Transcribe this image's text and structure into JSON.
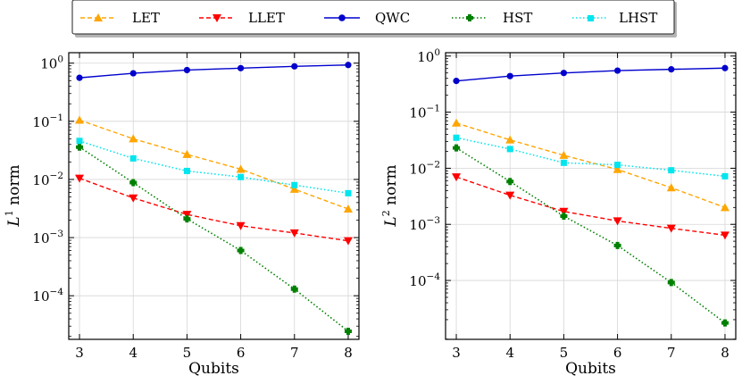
{
  "chart_data": [
    {
      "type": "line",
      "id": "l1",
      "xlabel": "Qubits",
      "ylabel_main": "L",
      "ylabel_sup": "1",
      "ylabel_rest": " norm",
      "yscale": "log",
      "xlim": [
        2.8,
        8.2
      ],
      "ylim_log10": [
        -4.75,
        0.18
      ],
      "x_ticks": [
        3,
        4,
        5,
        6,
        7,
        8
      ],
      "y_tick_exponents": [
        0,
        -1,
        -2,
        -3,
        -4
      ],
      "y_tick_labels": [
        "10",
        "10",
        "10",
        "10",
        "10"
      ],
      "y_tick_sups": [
        "0",
        "−1",
        "−2",
        "−3",
        "−4"
      ],
      "x": [
        3,
        4,
        5,
        6,
        7,
        8
      ],
      "series": [
        {
          "name": "LET",
          "values": [
            0.105,
            0.05,
            0.027,
            0.015,
            0.0068,
            0.0031
          ]
        },
        {
          "name": "LLET",
          "values": [
            0.0105,
            0.0048,
            0.0025,
            0.0016,
            0.0012,
            0.00088
          ]
        },
        {
          "name": "QWC",
          "values": [
            0.56,
            0.67,
            0.76,
            0.82,
            0.88,
            0.93
          ]
        },
        {
          "name": "HST",
          "values": [
            0.036,
            0.0088,
            0.0021,
            0.0006,
            0.00013,
            2.45e-05
          ]
        },
        {
          "name": "LHST",
          "values": [
            0.046,
            0.023,
            0.014,
            0.011,
            0.008,
            0.0058
          ]
        }
      ]
    },
    {
      "type": "line",
      "id": "l2",
      "xlabel": "Qubits",
      "ylabel_main": "L",
      "ylabel_sup": "2",
      "ylabel_rest": " norm",
      "yscale": "log",
      "xlim": [
        2.8,
        8.2
      ],
      "ylim_log10": [
        -5.05,
        0.06
      ],
      "x_ticks": [
        3,
        4,
        5,
        6,
        7,
        8
      ],
      "y_tick_exponents": [
        0,
        -1,
        -2,
        -3,
        -4
      ],
      "y_tick_labels": [
        "10",
        "10",
        "10",
        "10",
        "10"
      ],
      "y_tick_sups": [
        "0",
        "−1",
        "−2",
        "−3",
        "−4"
      ],
      "x": [
        3,
        4,
        5,
        6,
        7,
        8
      ],
      "series": [
        {
          "name": "LET",
          "values": [
            0.064,
            0.032,
            0.017,
            0.0095,
            0.0045,
            0.002
          ]
        },
        {
          "name": "LLET",
          "values": [
            0.007,
            0.0033,
            0.0017,
            0.00115,
            0.00085,
            0.00064
          ]
        },
        {
          "name": "QWC",
          "values": [
            0.36,
            0.44,
            0.5,
            0.55,
            0.58,
            0.61
          ]
        },
        {
          "name": "HST",
          "values": [
            0.023,
            0.0058,
            0.0014,
            0.00042,
            9.2e-05,
            1.75e-05
          ]
        },
        {
          "name": "LHST",
          "values": [
            0.035,
            0.022,
            0.0125,
            0.0115,
            0.0092,
            0.0072
          ]
        }
      ]
    }
  ],
  "legend": {
    "placement": "top-center",
    "entries": [
      {
        "name": "LET",
        "color": "#FFA500",
        "dash": "dashed",
        "marker": "triangle-up"
      },
      {
        "name": "LLET",
        "color": "#FF0000",
        "dash": "dashed",
        "marker": "triangle-down"
      },
      {
        "name": "QWC",
        "color": "#0000CD",
        "dash": "solid",
        "marker": "circle"
      },
      {
        "name": "HST",
        "color": "#008000",
        "dash": "dotted",
        "marker": "plus"
      },
      {
        "name": "LHST",
        "color": "#00E5EE",
        "dash": "dotted",
        "marker": "square"
      }
    ]
  }
}
